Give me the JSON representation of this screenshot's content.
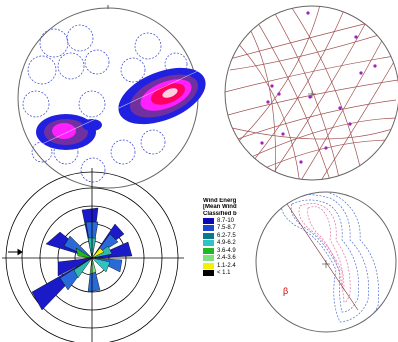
{
  "legend": {
    "title_line1": "Wind Energ",
    "title_line2": "[Mean Wind",
    "title_line3": "Classified b",
    "classes": [
      {
        "label": "8.7-10",
        "color": "#0a0ab4"
      },
      {
        "label": "7.5-8.7",
        "color": "#1e46d2"
      },
      {
        "label": "6.2-7.5",
        "color": "#0a7a8a"
      },
      {
        "label": "4.9-6.2",
        "color": "#2ec4c4"
      },
      {
        "label": "3.6-4.9",
        "color": "#1fb81f"
      },
      {
        "label": "2.4-3.6",
        "color": "#7fe07f"
      },
      {
        "label": "1.1-2.4",
        "color": "#f2f200"
      },
      {
        "label": "< 1.1",
        "color": "#000000"
      }
    ]
  },
  "colors": {
    "density_outer": "#2020e0",
    "density_mid": "#7030a0",
    "density_inner": "#ff20ff",
    "density_core": "#ff0060",
    "great_circle": "#a05050",
    "pole": "#a020c0",
    "contour": "#5070d0",
    "contour_pink": "#e070a0",
    "rose_dark": "#1a1ac8",
    "rose_mid": "#2a6ad8",
    "rose_light": "#30b8b0"
  },
  "marker_label": "β"
}
